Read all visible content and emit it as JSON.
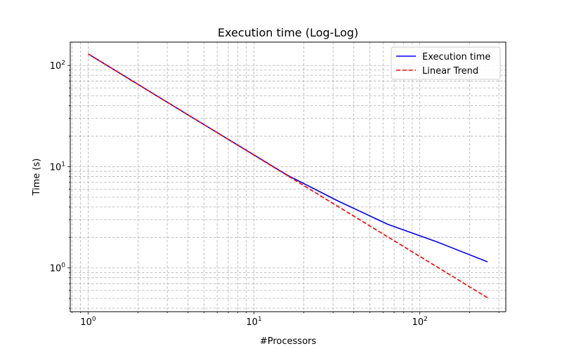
{
  "chart_data": {
    "type": "line",
    "title": "Execution time (Log-Log)",
    "xlabel": "#Processors",
    "ylabel": "Time (s)",
    "xscale": "log",
    "yscale": "log",
    "xlim": [
      0.78,
      330
    ],
    "ylim": [
      0.37,
      170
    ],
    "grid": "major and minor, dashed",
    "legend_position": "top-right",
    "x_ticks": [
      {
        "base": "10",
        "exp": "0",
        "value": 1
      },
      {
        "base": "10",
        "exp": "1",
        "value": 10
      },
      {
        "base": "10",
        "exp": "2",
        "value": 100
      }
    ],
    "y_ticks": [
      {
        "base": "10",
        "exp": "0",
        "value": 1
      },
      {
        "base": "10",
        "exp": "1",
        "value": 10
      },
      {
        "base": "10",
        "exp": "2",
        "value": 100
      }
    ],
    "series": [
      {
        "name": "Execution time",
        "color": "#0000ff",
        "style": "solid",
        "x": [
          1,
          2,
          4,
          8,
          16,
          32,
          64,
          128,
          256
        ],
        "y": [
          130,
          65,
          32.5,
          16.3,
          8.2,
          4.6,
          2.7,
          1.8,
          1.15
        ]
      },
      {
        "name": "Linear Trend",
        "color": "#ff0000",
        "style": "dashed",
        "x": [
          1,
          2,
          4,
          8,
          16,
          32,
          64,
          128,
          256
        ],
        "y": [
          130,
          65,
          32.5,
          16.25,
          8.125,
          4.06,
          2.03,
          1.016,
          0.508
        ]
      }
    ]
  }
}
